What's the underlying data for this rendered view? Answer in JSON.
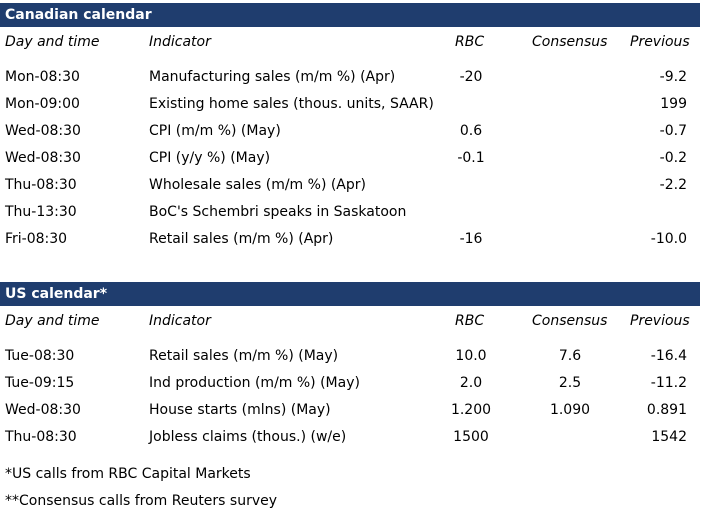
{
  "canada": {
    "title": "Canadian calendar",
    "headers": [
      "Day and time",
      "Indicator",
      "RBC",
      "Consensus",
      "Previous"
    ],
    "rows": [
      [
        "Mon-08:30",
        "Manufacturing sales (m/m %) (Apr)",
        "-20",
        "",
        "-9.2"
      ],
      [
        "Mon-09:00",
        "Existing home sales (thous. units, SAAR)",
        "",
        "",
        "199"
      ],
      [
        "Wed-08:30",
        "CPI (m/m %) (May)",
        "0.6",
        "",
        "-0.7"
      ],
      [
        "Wed-08:30",
        "CPI (y/y %) (May)",
        "-0.1",
        "",
        "-0.2"
      ],
      [
        "Thu-08:30",
        "Wholesale sales (m/m %) (Apr)",
        "",
        "",
        "-2.2"
      ],
      [
        "Thu-13:30",
        "BoC's Schembri speaks in Saskatoon",
        "",
        "",
        ""
      ],
      [
        "Fri-08:30",
        "Retail sales (m/m %) (Apr)",
        "-16",
        "",
        "-10.0"
      ]
    ]
  },
  "us": {
    "title": "US calendar*",
    "headers": [
      "Day and time",
      "Indicator",
      "RBC",
      "Consensus",
      "Previous"
    ],
    "rows": [
      [
        "Tue-08:30",
        "Retail sales (m/m %) (May)",
        "10.0",
        "7.6",
        "-16.4"
      ],
      [
        "Tue-09:15",
        "Ind production (m/m %) (May)",
        "2.0",
        "2.5",
        "-11.2"
      ],
      [
        "Wed-08:30",
        "House starts (mlns) (May)",
        "1.200",
        "1.090",
        "0.891"
      ],
      [
        "Thu-08:30",
        "Jobless claims (thous.) (w/e)",
        "1500",
        "",
        "1542"
      ]
    ]
  },
  "footnotes": [
    "*US calls from RBC Capital Markets",
    "**Consensus calls from Reuters survey"
  ],
  "colors": {
    "header_bar": "#1f3d6e",
    "header_text": "#ffffff"
  }
}
